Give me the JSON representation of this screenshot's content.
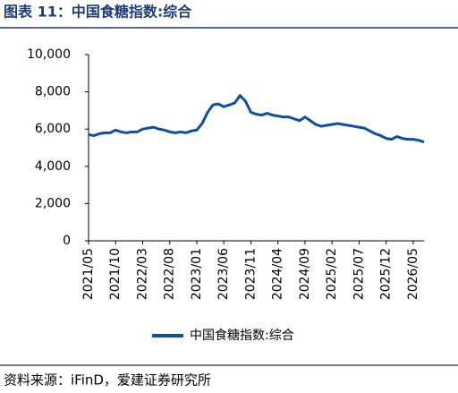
{
  "chart_data": {
    "type": "line",
    "title": "图表 11：中国食糖指数:综合",
    "source": "资料来源：iFinD，爱建证券研究所",
    "x": [
      "2021/05",
      "2021/06",
      "2021/07",
      "2021/08",
      "2021/09",
      "2021/10",
      "2021/11",
      "2021/12",
      "2022/01",
      "2022/02",
      "2022/03",
      "2022/04",
      "2022/05",
      "2022/06",
      "2022/07",
      "2022/08",
      "2022/09",
      "2022/10",
      "2022/11",
      "2022/12",
      "2023/01",
      "2023/02",
      "2023/03",
      "2023/04",
      "2023/05",
      "2023/06",
      "2023/07",
      "2023/08",
      "2023/09",
      "2023/10",
      "2023/11",
      "2023/12",
      "2024/01",
      "2024/02",
      "2024/03",
      "2024/04",
      "2024/05",
      "2024/06",
      "2024/07",
      "2024/08",
      "2024/09",
      "2024/10",
      "2024/11",
      "2024/12",
      "2025/01",
      "2025/02",
      "2025/03",
      "2025/04",
      "2025/05",
      "2025/06",
      "2025/07",
      "2025/08",
      "2025/09",
      "2025/10",
      "2025/11",
      "2025/12",
      "2026/01",
      "2026/02",
      "2026/03",
      "2026/04",
      "2026/05",
      "2026/06",
      "2026/07"
    ],
    "series": [
      {
        "name": "中国食糖指数:综合",
        "color": "#0d4ea6",
        "values": [
          5700,
          5650,
          5750,
          5800,
          5800,
          5950,
          5850,
          5800,
          5850,
          5850,
          6000,
          6050,
          6100,
          6000,
          5950,
          5850,
          5800,
          5850,
          5800,
          5900,
          5950,
          6300,
          6900,
          7300,
          7350,
          7200,
          7300,
          7400,
          7800,
          7500,
          6900,
          6800,
          6750,
          6850,
          6750,
          6700,
          6650,
          6650,
          6550,
          6450,
          6650,
          6450,
          6250,
          6150,
          6200,
          6250,
          6300,
          6250,
          6200,
          6150,
          6100,
          6050,
          5900,
          5750,
          5650,
          5500,
          5450,
          5600,
          5500,
          5450,
          5450,
          5400,
          5300
        ]
      }
    ],
    "ylim": [
      0,
      10000
    ],
    "yticks": [
      0,
      {
        "value": 2000,
        "label": "2,000"
      },
      {
        "value": 4000,
        "label": "4,000"
      },
      {
        "value": 6000,
        "label": "6,000"
      },
      {
        "value": 8000,
        "label": "8,000"
      },
      {
        "value": 10000,
        "label": "10,000"
      }
    ],
    "xticks": [
      "2021/05",
      "2021/10",
      "2022/03",
      "2022/08",
      "2023/01",
      "2023/06",
      "2023/11",
      "2024/04",
      "2024/09",
      "2025/02",
      "2025/07",
      "2025/12",
      "2026/05"
    ]
  }
}
